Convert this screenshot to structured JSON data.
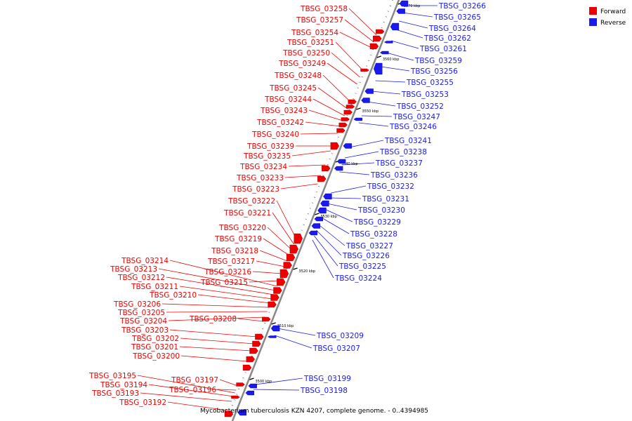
{
  "colors": {
    "forward": "#ee0000",
    "reverse": "#1a1aee",
    "backbone": "#888888"
  },
  "legend": [
    {
      "label": "Forward",
      "color": "#ee0000"
    },
    {
      "label": "Reverse",
      "color": "#1a1aee"
    }
  ],
  "caption": "Mycobacterium tuberculosis KZN 4207, complete genome. - 0..4394985",
  "kbp_marks": [
    "3500 kbp",
    "3510 kbp",
    "3520 kbp",
    "3530 kbp",
    "3540 kbp",
    "3550 kbp",
    "3560 kbp",
    "3570 kbp"
  ],
  "forward_genes": [
    "TBSG_03258",
    "TBSG_03257",
    "TBSG_03254",
    "TBSG_03251",
    "TBSG_03250",
    "TBSG_03249",
    "TBSG_03248",
    "TBSG_03245",
    "TBSG_03244",
    "TBSG_03243",
    "TBSG_03242",
    "TBSG_03240",
    "TBSG_03239",
    "TBSG_03235",
    "TBSG_03234",
    "TBSG_03233",
    "TBSG_03223",
    "TBSG_03222",
    "TBSG_03221",
    "TBSG_03220",
    "TBSG_03219",
    "TBSG_03218",
    "TBSG_03217",
    "TBSG_03216",
    "TBSG_03215",
    "TBSG_03214",
    "TBSG_03213",
    "TBSG_03212",
    "TBSG_03211",
    "TBSG_03210",
    "TBSG_03206",
    "TBSG_03205",
    "TBSG_03204",
    "TBSG_03208",
    "TBSG_03203",
    "TBSG_03202",
    "TBSG_03201",
    "TBSG_03200",
    "TBSG_03195",
    "TBSG_03194",
    "TBSG_03193",
    "TBSG_03192",
    "TBSG_03197",
    "TBSG_03196"
  ],
  "reverse_genes": [
    "TBSG_03266",
    "TBSG_03265",
    "TBSG_03264",
    "TBSG_03262",
    "TBSG_03261",
    "TBSG_03259",
    "TBSG_03256",
    "TBSG_03255",
    "TBSG_03253",
    "TBSG_03252",
    "TBSG_03247",
    "TBSG_03246",
    "TBSG_03241",
    "TBSG_03238",
    "TBSG_03237",
    "TBSG_03236",
    "TBSG_03232",
    "TBSG_03231",
    "TBSG_03230",
    "TBSG_03229",
    "TBSG_03228",
    "TBSG_03227",
    "TBSG_03226",
    "TBSG_03225",
    "TBSG_03224",
    "TBSG_03209",
    "TBSG_03207",
    "TBSG_03199",
    "TBSG_03198"
  ]
}
